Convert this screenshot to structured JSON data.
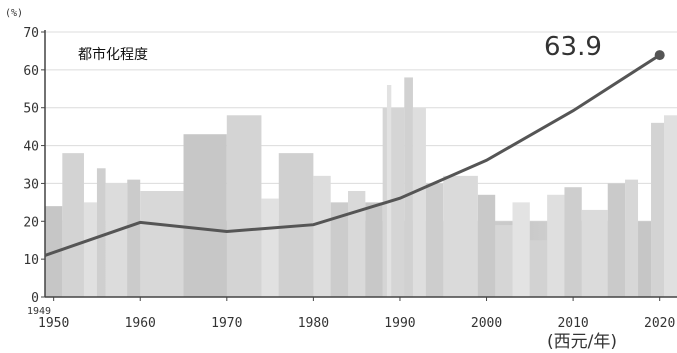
{
  "chart_data": {
    "type": "line",
    "title": "都市化程度",
    "y_unit": "(%)",
    "x_unit": "(西元/年)",
    "ylim": [
      0,
      70
    ],
    "xlim": [
      1949,
      2022
    ],
    "yticks": [
      0,
      10,
      20,
      30,
      40,
      50,
      60,
      70
    ],
    "xticks": [
      1950,
      1960,
      1970,
      1980,
      1990,
      2000,
      2010,
      2020
    ],
    "x_origin_label": "1949",
    "grid": "horizontal",
    "series": [
      {
        "x": [
          1949,
          1960,
          1970,
          1980,
          1990,
          2000,
          2010,
          2020
        ],
        "y": [
          11.0,
          19.7,
          17.3,
          19.1,
          26.1,
          36.1,
          49.2,
          63.9
        ]
      }
    ],
    "end_label": "63.9",
    "colors": {
      "line": "#555555",
      "buildings": "#cfcfcf",
      "axis": "#444444",
      "grid": "#dcdcdc"
    }
  }
}
